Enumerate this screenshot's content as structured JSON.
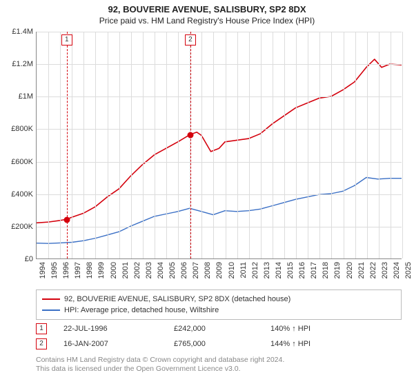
{
  "title_line1": "92, BOUVERIE AVENUE, SALISBURY, SP2 8DX",
  "title_line2": "Price paid vs. HM Land Registry's House Price Index (HPI)",
  "chart": {
    "type": "line",
    "background_color": "#ffffff",
    "grid_color": "#dcdcdc",
    "axis_color": "#888888",
    "tick_fontsize": 11,
    "x_years": [
      1994,
      1995,
      1996,
      1997,
      1998,
      1999,
      2000,
      2001,
      2002,
      2003,
      2004,
      2005,
      2006,
      2007,
      2008,
      2009,
      2010,
      2011,
      2012,
      2013,
      2014,
      2015,
      2016,
      2017,
      2018,
      2019,
      2020,
      2021,
      2022,
      2023,
      2024,
      2025
    ],
    "y_ticks": [
      0,
      200000,
      400000,
      600000,
      800000,
      1000000,
      1200000,
      1400000
    ],
    "y_tick_labels": [
      "£0",
      "£200K",
      "£400K",
      "£600K",
      "£800K",
      "£1M",
      "£1.2M",
      "£1.4M"
    ],
    "ylim": [
      0,
      1400000
    ],
    "xlim": [
      1994,
      2025
    ],
    "series": [
      {
        "name": "property",
        "label": "92, BOUVERIE AVENUE, SALISBURY, SP2 8DX (detached house)",
        "color": "#d4000c",
        "line_width": 1.6,
        "data": [
          [
            1994,
            220000
          ],
          [
            1995,
            225000
          ],
          [
            1996,
            235000
          ],
          [
            1996.56,
            242000
          ],
          [
            1997,
            255000
          ],
          [
            1998,
            280000
          ],
          [
            1999,
            320000
          ],
          [
            2000,
            380000
          ],
          [
            2001,
            430000
          ],
          [
            2002,
            510000
          ],
          [
            2003,
            580000
          ],
          [
            2004,
            640000
          ],
          [
            2005,
            680000
          ],
          [
            2006,
            720000
          ],
          [
            2007.04,
            765000
          ],
          [
            2007.6,
            780000
          ],
          [
            2008,
            760000
          ],
          [
            2008.8,
            660000
          ],
          [
            2009.5,
            680000
          ],
          [
            2010,
            720000
          ],
          [
            2011,
            730000
          ],
          [
            2012,
            740000
          ],
          [
            2013,
            770000
          ],
          [
            2014,
            830000
          ],
          [
            2015,
            880000
          ],
          [
            2016,
            930000
          ],
          [
            2017,
            960000
          ],
          [
            2018,
            990000
          ],
          [
            2019,
            1000000
          ],
          [
            2020,
            1040000
          ],
          [
            2021,
            1090000
          ],
          [
            2022,
            1180000
          ],
          [
            2022.7,
            1230000
          ],
          [
            2023.3,
            1180000
          ],
          [
            2024,
            1200000
          ],
          [
            2025,
            1195000
          ]
        ]
      },
      {
        "name": "hpi",
        "label": "HPI: Average price, detached house, Wiltshire",
        "color": "#3a6fc5",
        "line_width": 1.4,
        "data": [
          [
            1994,
            95000
          ],
          [
            1995,
            93000
          ],
          [
            1996,
            96000
          ],
          [
            1997,
            100000
          ],
          [
            1998,
            110000
          ],
          [
            1999,
            125000
          ],
          [
            2000,
            145000
          ],
          [
            2001,
            165000
          ],
          [
            2002,
            200000
          ],
          [
            2003,
            230000
          ],
          [
            2004,
            260000
          ],
          [
            2005,
            275000
          ],
          [
            2006,
            290000
          ],
          [
            2007,
            310000
          ],
          [
            2008,
            290000
          ],
          [
            2009,
            270000
          ],
          [
            2010,
            295000
          ],
          [
            2011,
            290000
          ],
          [
            2012,
            295000
          ],
          [
            2013,
            305000
          ],
          [
            2014,
            325000
          ],
          [
            2015,
            345000
          ],
          [
            2016,
            365000
          ],
          [
            2017,
            380000
          ],
          [
            2018,
            395000
          ],
          [
            2019,
            400000
          ],
          [
            2020,
            415000
          ],
          [
            2021,
            450000
          ],
          [
            2022,
            500000
          ],
          [
            2023,
            490000
          ],
          [
            2024,
            495000
          ],
          [
            2025,
            495000
          ]
        ]
      }
    ],
    "transactions": [
      {
        "n": "1",
        "year": 1996.56,
        "value": 242000,
        "date_label": "22-JUL-1996",
        "price_label": "£242,000",
        "pct_label": "140% ↑ HPI",
        "color": "#d4000c"
      },
      {
        "n": "2",
        "year": 2007.04,
        "value": 765000,
        "date_label": "16-JAN-2007",
        "price_label": "£765,000",
        "pct_label": "144% ↑ HPI",
        "color": "#d4000c"
      }
    ]
  },
  "footnote_line1": "Contains HM Land Registry data © Crown copyright and database right 2024.",
  "footnote_line2": "This data is licensed under the Open Government Licence v3.0."
}
